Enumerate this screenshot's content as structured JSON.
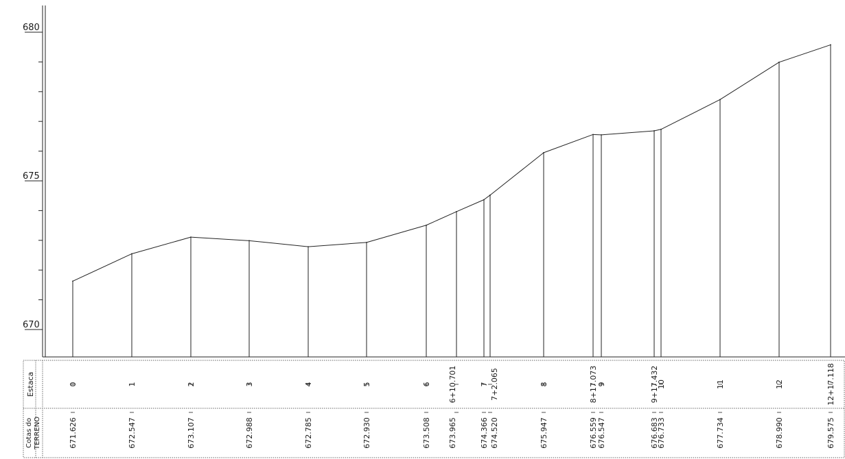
{
  "chart_data": {
    "type": "line",
    "title": "",
    "xlabel": "",
    "ylabel": "",
    "ylim": [
      669,
      681
    ],
    "y_ticks": [
      {
        "value": 670,
        "label": "670"
      },
      {
        "value": 675,
        "label": "675"
      },
      {
        "value": 680,
        "label": "680"
      }
    ],
    "minor_tick_step": 1,
    "grid": false,
    "table_row_labels": {
      "stations": "Estaca",
      "elevations_line1": "Cotas do",
      "elevations_line2": "TERRENO"
    },
    "points": [
      {
        "station": "0",
        "elevation": 671.626,
        "elevation_label": "671.626"
      },
      {
        "station": "1",
        "elevation": 672.547,
        "elevation_label": "672.547"
      },
      {
        "station": "2",
        "elevation": 673.107,
        "elevation_label": "673.107"
      },
      {
        "station": "3",
        "elevation": 672.988,
        "elevation_label": "672.988"
      },
      {
        "station": "4",
        "elevation": 672.785,
        "elevation_label": "672.785"
      },
      {
        "station": "5",
        "elevation": 672.93,
        "elevation_label": "672.930"
      },
      {
        "station": "6",
        "elevation": 673.508,
        "elevation_label": "673.508"
      },
      {
        "station": "6+10.701",
        "elevation": 673.965,
        "elevation_label": "673.965"
      },
      {
        "station": "7",
        "elevation": 674.366,
        "elevation_label": "674.366"
      },
      {
        "station": "7+2.065",
        "elevation": 674.52,
        "elevation_label": "674.520"
      },
      {
        "station": "8",
        "elevation": 675.947,
        "elevation_label": "675.947"
      },
      {
        "station": "8+17.073",
        "elevation": 676.559,
        "elevation_label": "676.559"
      },
      {
        "station": "9",
        "elevation": 676.547,
        "elevation_label": "676.547"
      },
      {
        "station": "9+17.432",
        "elevation": 676.683,
        "elevation_label": "676.683"
      },
      {
        "station": "10",
        "elevation": 676.733,
        "elevation_label": "676.733"
      },
      {
        "station": "11",
        "elevation": 677.734,
        "elevation_label": "677.734"
      },
      {
        "station": "12",
        "elevation": 678.99,
        "elevation_label": "678.990"
      },
      {
        "station": "12+17.118",
        "elevation": 679.575,
        "elevation_label": "679.575"
      }
    ]
  }
}
